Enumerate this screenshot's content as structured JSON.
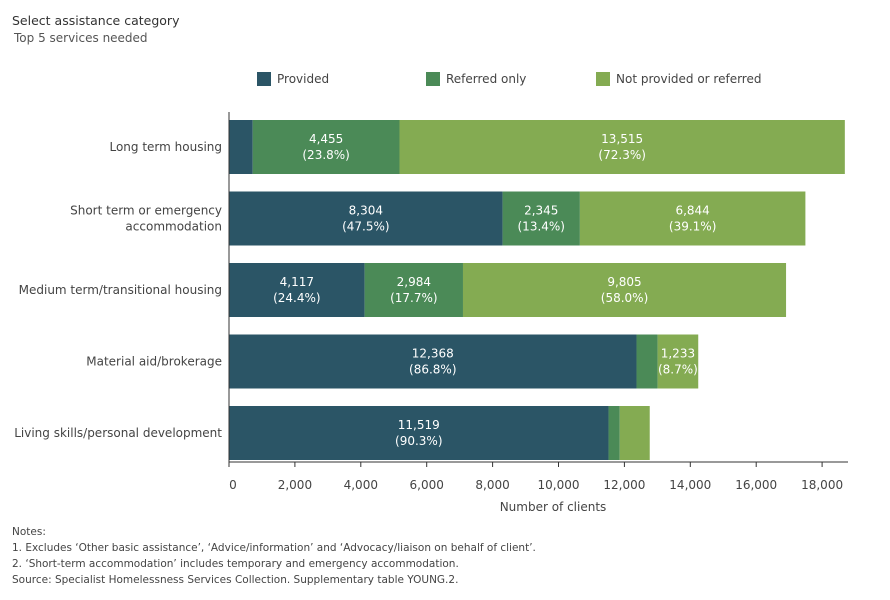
{
  "header": {
    "title": "Select assistance category",
    "subtitle": "Top 5 services needed"
  },
  "chart_data": {
    "type": "bar",
    "orientation": "horizontal",
    "stacked": true,
    "categories": [
      "Long term housing",
      "Short term or emergency accommodation",
      "Medium term/transitional housing",
      "Material aid/brokerage",
      "Living skills/personal development"
    ],
    "category_lines": [
      [
        "Long term housing"
      ],
      [
        "Short term or emergency",
        "accommodation"
      ],
      [
        "Medium term/transitional housing"
      ],
      [
        "Material aid/brokerage"
      ],
      [
        "Living skills/personal development"
      ]
    ],
    "series": [
      {
        "name": "Provided",
        "color": "#2b5566",
        "values": [
          720,
          8304,
          4117,
          12368,
          11519
        ],
        "labels": [
          "",
          "8,304\n(47.5%)",
          "4,117\n(24.4%)",
          "12,368\n(86.8%)",
          "11,519\n(90.3%)"
        ]
      },
      {
        "name": "Referred only",
        "color": "#4b8a57",
        "values": [
          4455,
          2345,
          2984,
          640,
          340
        ],
        "labels": [
          "4,455\n(23.8%)",
          "2,345\n(13.4%)",
          "2,984\n(17.7%)",
          "",
          ""
        ]
      },
      {
        "name": "Not provided or referred",
        "color": "#84ab52",
        "values": [
          13515,
          6844,
          9805,
          1233,
          910
        ],
        "labels": [
          "13,515\n(72.3%)",
          "6,844\n(39.1%)",
          "9,805\n(58.0%)",
          "1,233\n(8.7%)",
          ""
        ]
      }
    ],
    "xlabel": "Number of clients",
    "xlim": [
      0,
      19000
    ],
    "xticks": [
      0,
      2000,
      4000,
      6000,
      8000,
      10000,
      12000,
      14000,
      16000,
      18000
    ],
    "xtick_labels": [
      "0",
      "2,000",
      "4,000",
      "6,000",
      "8,000",
      "10,000",
      "12,000",
      "14,000",
      "16,000",
      "18,000"
    ],
    "legend_position": "top",
    "grid": false
  },
  "notes": {
    "heading": "Notes:",
    "lines": [
      "1. Excludes ‘Other basic assistance’, ‘Advice/information’ and ‘Advocacy/liaison on behalf of client’.",
      "2. ‘Short-term accommodation’ includes temporary and emergency accommodation.",
      "Source: Specialist Homelessness Services Collection. Supplementary table YOUNG.2."
    ]
  }
}
